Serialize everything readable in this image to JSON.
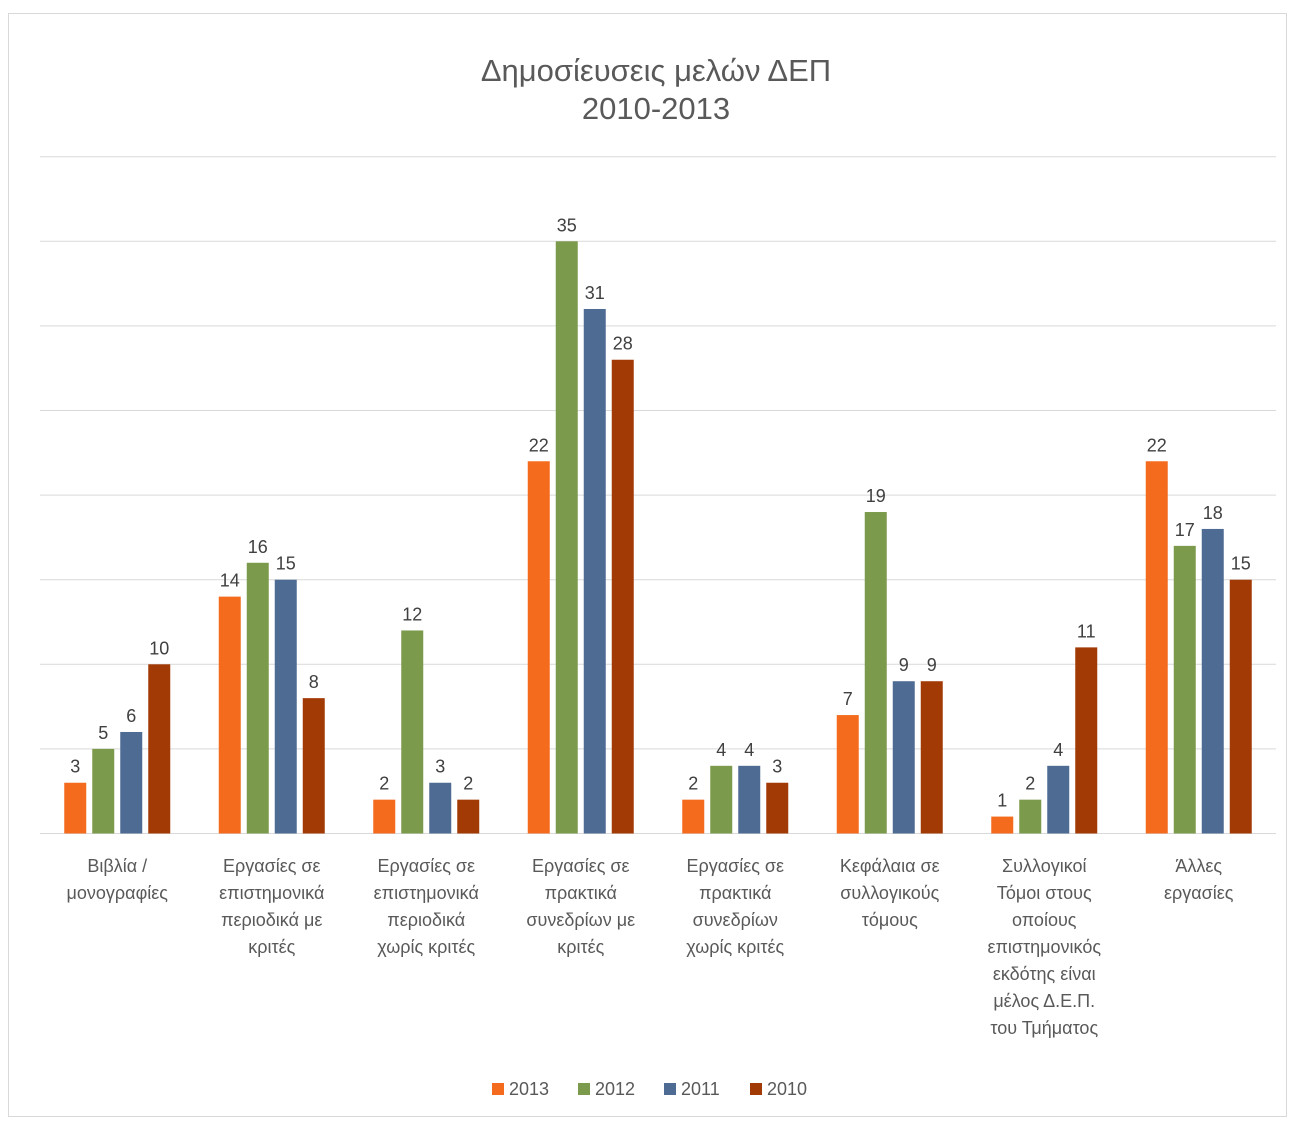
{
  "chart_data": {
    "type": "bar",
    "title": [
      "Δημοσίευσεις μελών ΔΕΠ",
      "2010-2013"
    ],
    "categories": [
      [
        "Βιβλία /",
        "μονογραφίες"
      ],
      [
        "Εργασίες σε",
        "επιστημονικά",
        "περιοδικά με",
        "κριτές"
      ],
      [
        "Εργασίες σε",
        "επιστημονικά",
        "περιοδικά",
        "χωρίς κριτές"
      ],
      [
        "Εργασίες σε",
        "πρακτικά",
        "συνεδρίων με",
        "κριτές"
      ],
      [
        "Εργασίες σε",
        "πρακτικά",
        "συνεδρίων",
        "χωρίς κριτές"
      ],
      [
        "Κεφάλαια σε",
        "συλλογικούς",
        "τόμους"
      ],
      [
        "Συλλογικοί",
        "Τόμοι στους",
        "οποίους",
        "επιστημονικός",
        "εκδότης είναι",
        "μέλος Δ.Ε.Π.",
        "του Τμήματος"
      ],
      [
        "Άλλες",
        "εργασίες"
      ]
    ],
    "series": [
      {
        "name": "2013",
        "color": "#f46b1e",
        "values": [
          3,
          14,
          2,
          22,
          2,
          7,
          1,
          22
        ]
      },
      {
        "name": "2012",
        "color": "#7c9a4b",
        "values": [
          5,
          16,
          12,
          35,
          4,
          19,
          2,
          17
        ]
      },
      {
        "name": "2011",
        "color": "#4e6b93",
        "values": [
          6,
          15,
          3,
          31,
          4,
          9,
          4,
          18
        ]
      },
      {
        "name": "2010",
        "color": "#a23a06",
        "values": [
          10,
          8,
          2,
          28,
          3,
          9,
          11,
          15
        ]
      }
    ],
    "ylim": [
      0,
      40
    ],
    "ytick_step": 5,
    "grid": true,
    "legend_position": "bottom"
  }
}
